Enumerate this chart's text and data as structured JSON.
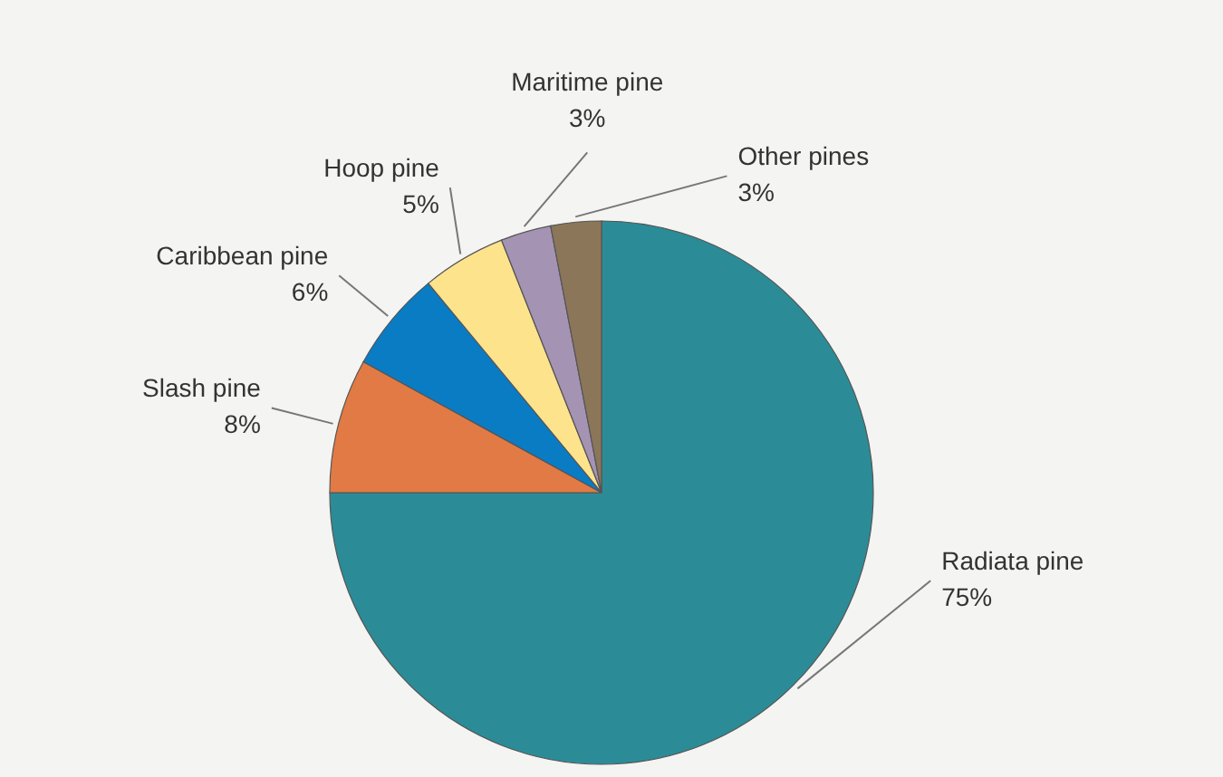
{
  "chart_data": {
    "type": "pie",
    "categories": [
      "Radiata pine",
      "Slash pine",
      "Caribbean pine",
      "Hoop pine",
      "Maritime pine",
      "Other pines"
    ],
    "values": [
      75,
      8,
      6,
      5,
      3,
      3
    ],
    "value_labels": [
      "75%",
      "8%",
      "6%",
      "5%",
      "3%",
      "3%"
    ],
    "colors": [
      "#2b8c98",
      "#e27a45",
      "#0a7cc4",
      "#fde38c",
      "#a593b3",
      "#8b7659"
    ]
  }
}
